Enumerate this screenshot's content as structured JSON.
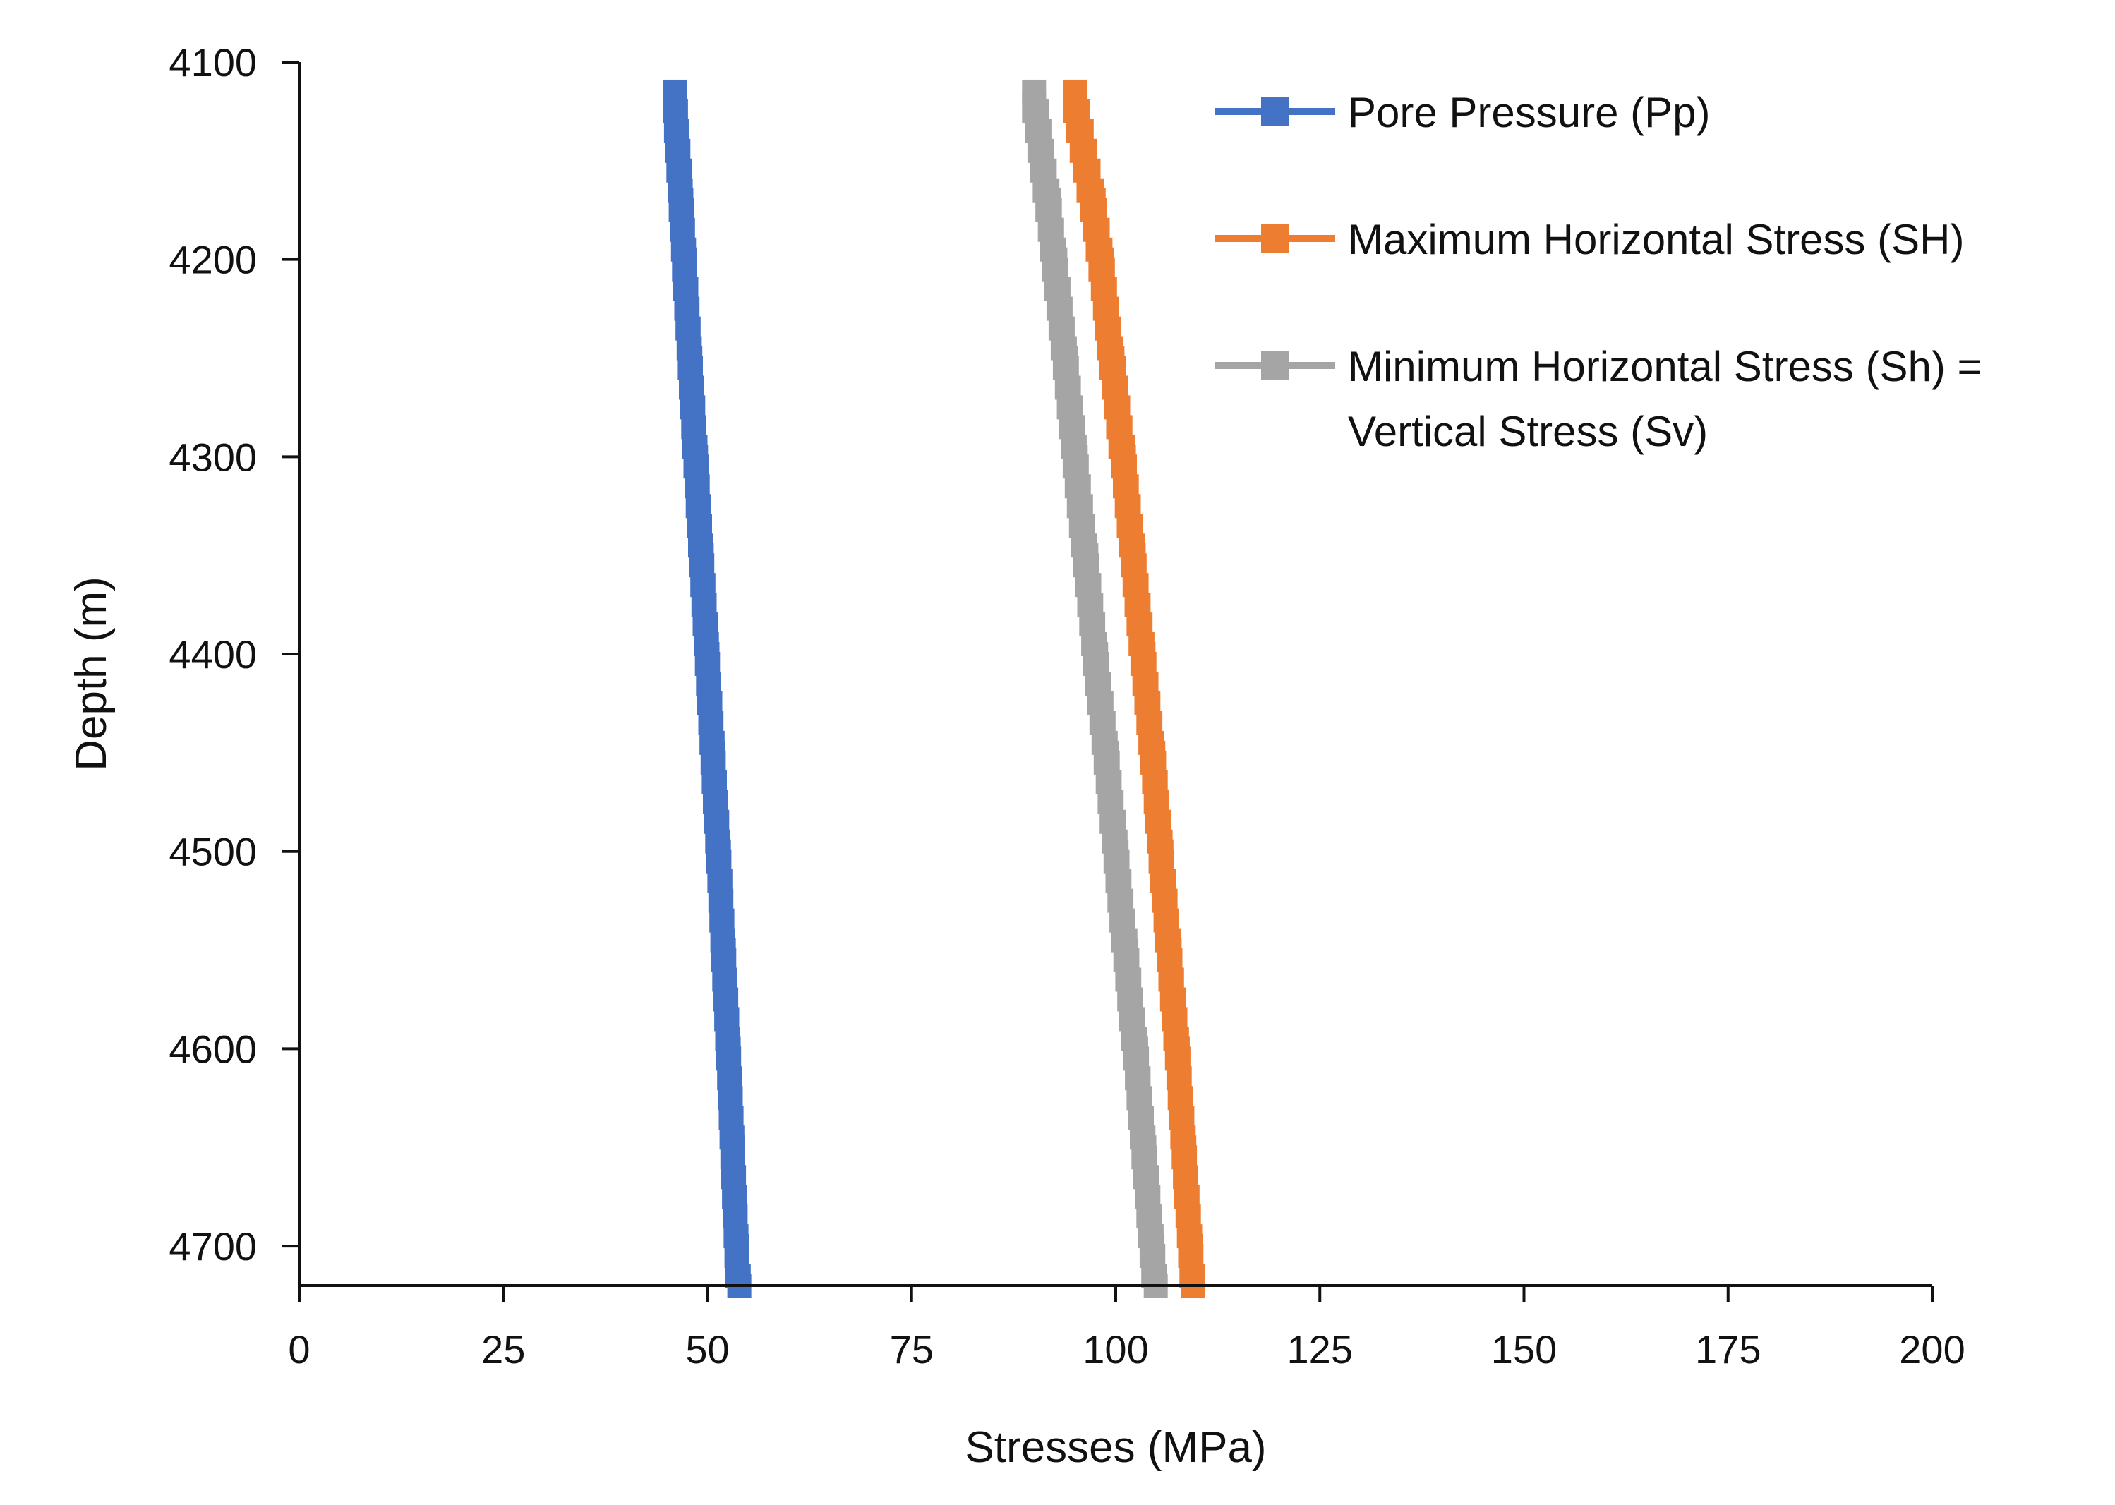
{
  "chart_data": {
    "type": "line",
    "orientation": "depth-profile",
    "title": "",
    "xlabel": "Stresses (MPa)",
    "ylabel": "Depth (m)",
    "xlim": [
      0,
      200
    ],
    "ylim": [
      4100,
      4720
    ],
    "y_inverted": true,
    "x_ticks": [
      0,
      25,
      50,
      75,
      100,
      125,
      150,
      175,
      200
    ],
    "y_ticks": [
      4100,
      4200,
      4300,
      4400,
      4500,
      4600,
      4700
    ],
    "legend_position": "top-right",
    "grid": false,
    "depth": [
      4115,
      4170,
      4200,
      4250,
      4300,
      4350,
      4400,
      4450,
      4500,
      4550,
      4600,
      4650,
      4700,
      4720
    ],
    "series": [
      {
        "name": "Pore Pressure (Pp)",
        "color": "#4472C4",
        "values": [
          46,
          46.8,
          47.2,
          47.9,
          48.6,
          49.3,
          50.0,
          50.7,
          51.4,
          52.0,
          52.6,
          53.1,
          53.6,
          53.9
        ]
      },
      {
        "name": "Maximum Horizontal Stress (SH)",
        "color": "#ED7D31",
        "values": [
          95,
          97.3,
          98.3,
          99.6,
          101.0,
          102.2,
          103.4,
          104.6,
          105.6,
          106.6,
          107.6,
          108.4,
          109.2,
          109.5
        ]
      },
      {
        "name": "Minimum Horizontal Stress (Sh) = Vertical Stress (Sv)",
        "name_lines": [
          "Minimum Horizontal Stress (Sh) =",
          "Vertical Stress (Sv)"
        ],
        "color": "#A5A5A5",
        "values": [
          90,
          91.8,
          92.6,
          93.9,
          95.1,
          96.4,
          97.6,
          98.9,
          100.1,
          101.3,
          102.5,
          103.5,
          104.5,
          104.9
        ]
      }
    ]
  }
}
